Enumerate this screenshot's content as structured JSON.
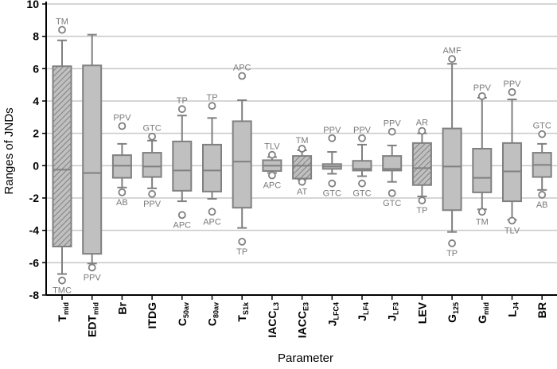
{
  "chart_data": {
    "type": "box",
    "title": "",
    "xlabel": "Parameter",
    "ylabel": "Ranges of JNDs",
    "ylim": [
      -8,
      10
    ],
    "yticks": [
      10,
      8,
      6,
      4,
      2,
      0,
      -2,
      -4,
      -6,
      -8
    ],
    "grid": "horizontal",
    "colors": {
      "box_fill": "#c0c0c0",
      "box_stroke": "#808080",
      "grid": "#c8c8c8",
      "label": "#7a7a7a"
    },
    "categories": [
      {
        "main": "T",
        "sub": "mid",
        "hatched": true,
        "q1": -5.0,
        "median": -0.25,
        "q3": 6.15,
        "whisker_low": -6.7,
        "whisker_high": 7.75,
        "outlier_high": {
          "value": 8.4,
          "label": "TM"
        },
        "outlier_low": {
          "value": -7.1,
          "label": "TMC"
        }
      },
      {
        "main": "EDT",
        "sub": "mid",
        "hatched": false,
        "q1": -5.45,
        "median": -0.45,
        "q3": 6.2,
        "whisker_low": -6.05,
        "whisker_high": 8.1,
        "outlier_low": {
          "value": -6.3,
          "label": "PPV"
        }
      },
      {
        "main": "Br",
        "sub": "",
        "hatched": false,
        "q1": -0.75,
        "median": 0.0,
        "q3": 0.65,
        "whisker_low": -1.35,
        "whisker_high": 1.35,
        "outlier_high": {
          "value": 2.45,
          "label": "PPV"
        },
        "outlier_low": {
          "value": -1.65,
          "label": "AB"
        }
      },
      {
        "main": "ITDG",
        "sub": "",
        "hatched": false,
        "q1": -0.7,
        "median": -0.05,
        "q3": 0.8,
        "whisker_low": -1.4,
        "whisker_high": 1.55,
        "outlier_high": {
          "value": 1.8,
          "label": "GTC"
        },
        "outlier_low": {
          "value": -1.75,
          "label": "PPV"
        }
      },
      {
        "main": "C",
        "sub": "50av",
        "hatched": false,
        "q1": -1.55,
        "median": -0.3,
        "q3": 1.5,
        "whisker_low": -2.2,
        "whisker_high": 3.1,
        "outlier_high": {
          "value": 3.5,
          "label": "TP"
        },
        "outlier_low": {
          "value": -3.05,
          "label": "APC"
        }
      },
      {
        "main": "C",
        "sub": "80av",
        "hatched": false,
        "q1": -1.6,
        "median": -0.3,
        "q3": 1.3,
        "whisker_low": -2.05,
        "whisker_high": 2.95,
        "outlier_high": {
          "value": 3.7,
          "label": "TP"
        },
        "outlier_low": {
          "value": -2.85,
          "label": "APC"
        }
      },
      {
        "main": "T",
        "sub": "S1k",
        "hatched": false,
        "q1": -2.6,
        "median": 0.25,
        "q3": 2.75,
        "whisker_low": -3.85,
        "whisker_high": 4.05,
        "outlier_high": {
          "value": 5.55,
          "label": "APC"
        },
        "outlier_low": {
          "value": -4.7,
          "label": "TP"
        }
      },
      {
        "main": "IACC",
        "sub": "L3",
        "hatched": false,
        "q1": -0.33,
        "median": 0.0,
        "q3": 0.34,
        "whisker_low": -0.45,
        "whisker_high": 0.53,
        "outlier_high": {
          "value": 0.67,
          "label": "TLV"
        },
        "outlier_low": {
          "value": -0.6,
          "label": "APC"
        }
      },
      {
        "main": "IACC",
        "sub": "E3",
        "hatched": true,
        "q1": -0.8,
        "median": 0.0,
        "q3": 0.6,
        "whisker_low": -0.85,
        "whisker_high": 0.95,
        "outlier_high": {
          "value": 1.05,
          "label": "TM"
        },
        "outlier_low": {
          "value": -1.0,
          "label": "AT"
        }
      },
      {
        "main": "J",
        "sub": "LFC4",
        "hatched": false,
        "q1": -0.2,
        "median": -0.05,
        "q3": 0.1,
        "whisker_low": -0.5,
        "whisker_high": 0.85,
        "outlier_high": {
          "value": 1.7,
          "label": "PPV"
        },
        "outlier_low": {
          "value": -1.1,
          "label": "GTC"
        }
      },
      {
        "main": "J",
        "sub": "LF4",
        "hatched": false,
        "q1": -0.3,
        "median": -0.2,
        "q3": 0.3,
        "whisker_low": -0.65,
        "whisker_high": 1.3,
        "outlier_high": {
          "value": 1.7,
          "label": "PPV"
        },
        "outlier_low": {
          "value": -1.1,
          "label": "GTC"
        }
      },
      {
        "main": "J",
        "sub": "LF3",
        "hatched": false,
        "q1": -0.3,
        "median": -0.2,
        "q3": 0.6,
        "whisker_low": -1.0,
        "whisker_high": 1.25,
        "outlier_high": {
          "value": 2.1,
          "label": "PPV"
        },
        "outlier_low": {
          "value": -1.7,
          "label": "GTC"
        }
      },
      {
        "main": "LEV",
        "sub": "",
        "hatched": true,
        "q1": -1.2,
        "median": -0.15,
        "q3": 1.4,
        "whisker_low": -1.9,
        "whisker_high": 2.0,
        "outlier_high": {
          "value": 2.15,
          "label": "AR"
        },
        "outlier_low": {
          "value": -2.15,
          "label": "TP"
        }
      },
      {
        "main": "G",
        "sub": "125",
        "hatched": false,
        "q1": -2.75,
        "median": -0.05,
        "q3": 2.3,
        "whisker_low": -4.1,
        "whisker_high": 6.3,
        "outlier_high": {
          "value": 6.6,
          "label": "AMF"
        },
        "outlier_low": {
          "value": -4.8,
          "label": "TP"
        }
      },
      {
        "main": "G",
        "sub": "mid",
        "hatched": false,
        "q1": -1.65,
        "median": -0.75,
        "q3": 1.05,
        "whisker_low": -2.7,
        "whisker_high": 4.2,
        "outlier_high": {
          "value": 4.3,
          "label": "PPV"
        },
        "outlier_low": {
          "value": -2.85,
          "label": "TM"
        }
      },
      {
        "main": "L",
        "sub": "J4",
        "hatched": false,
        "q1": -2.2,
        "median": -0.35,
        "q3": 1.4,
        "whisker_low": -3.35,
        "whisker_high": 4.1,
        "outlier_high": {
          "value": 4.55,
          "label": "PPV"
        },
        "outlier_low": {
          "value": -3.4,
          "label": "TLV"
        }
      },
      {
        "main": "BR",
        "sub": "",
        "hatched": false,
        "q1": -0.7,
        "median": 0.05,
        "q3": 0.8,
        "whisker_low": -1.5,
        "whisker_high": 1.35,
        "outlier_high": {
          "value": 1.95,
          "label": "GTC"
        },
        "outlier_low": {
          "value": -1.8,
          "label": "AB"
        }
      }
    ]
  }
}
